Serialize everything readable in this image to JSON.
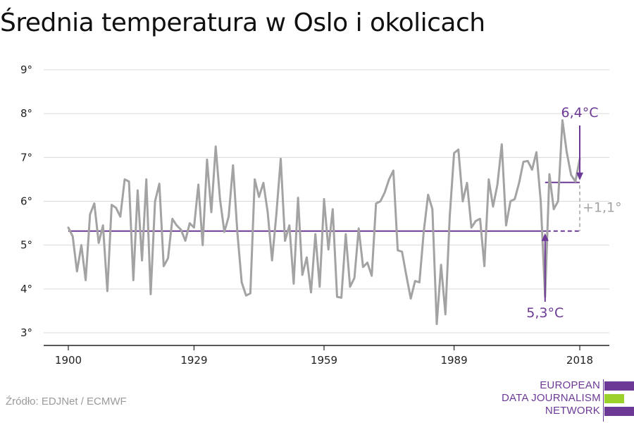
{
  "title": "Średnia temperatura w Oslo i okolicach",
  "source": "Źródło: EDJNet / ECMWF",
  "brand": {
    "line1": "EUROPEAN",
    "line2": "DATA JOURNALISM",
    "line3": "NETWORK",
    "colors": [
      "#6c3a96",
      "#9bd12b",
      "#6c3a96"
    ]
  },
  "colors": {
    "series": "#a3a3a3",
    "accent": "#6c3a96",
    "grid": "#d9d9d9",
    "axis": "#222222",
    "annotation_gray": "#a3a3a3"
  },
  "chart_data": {
    "type": "line",
    "title": "Średnia temperatura w Oslo i okolicach",
    "xlabel": "",
    "ylabel": "",
    "xlim": [
      1900,
      2018
    ],
    "ylim": [
      3,
      9
    ],
    "x_ticks": [
      1900,
      1929,
      1959,
      1989,
      2018
    ],
    "x_tick_labels": [
      "1900",
      "1929",
      "1959",
      "1989",
      "2018"
    ],
    "y_ticks": [
      3,
      4,
      5,
      6,
      7,
      8,
      9
    ],
    "y_tick_labels": [
      "3°",
      "4°",
      "5°",
      "6°",
      "7°",
      "8°",
      "9°"
    ],
    "grid": "horizontal",
    "x": [
      1900,
      1901,
      1902,
      1903,
      1904,
      1905,
      1906,
      1907,
      1908,
      1909,
      1910,
      1911,
      1912,
      1913,
      1914,
      1915,
      1916,
      1917,
      1918,
      1919,
      1920,
      1921,
      1922,
      1923,
      1924,
      1925,
      1926,
      1927,
      1928,
      1929,
      1930,
      1931,
      1932,
      1933,
      1934,
      1935,
      1936,
      1937,
      1938,
      1939,
      1940,
      1941,
      1942,
      1943,
      1944,
      1945,
      1946,
      1947,
      1948,
      1949,
      1950,
      1951,
      1952,
      1953,
      1954,
      1955,
      1956,
      1957,
      1958,
      1959,
      1960,
      1961,
      1962,
      1963,
      1964,
      1965,
      1966,
      1967,
      1968,
      1969,
      1970,
      1971,
      1972,
      1973,
      1974,
      1975,
      1976,
      1977,
      1978,
      1979,
      1980,
      1981,
      1982,
      1983,
      1984,
      1985,
      1986,
      1987,
      1988,
      1989,
      1990,
      1991,
      1992,
      1993,
      1994,
      1995,
      1996,
      1997,
      1998,
      1999,
      2000,
      2001,
      2002,
      2003,
      2004,
      2005,
      2006,
      2007,
      2008,
      2009,
      2010,
      2011,
      2012,
      2013,
      2014,
      2015,
      2016,
      2017,
      2018
    ],
    "values": [
      5.4,
      5.2,
      4.4,
      5.0,
      4.2,
      5.7,
      5.95,
      5.05,
      5.45,
      3.95,
      5.92,
      5.85,
      5.65,
      6.5,
      6.45,
      4.2,
      6.25,
      4.65,
      6.5,
      3.88,
      6.0,
      6.4,
      4.52,
      4.7,
      5.6,
      5.45,
      5.35,
      5.1,
      5.5,
      5.4,
      6.38,
      5.0,
      6.95,
      5.75,
      7.25,
      6.05,
      5.3,
      5.65,
      6.82,
      5.3,
      4.15,
      3.85,
      3.9,
      6.5,
      6.1,
      6.42,
      5.75,
      4.65,
      5.7,
      6.97,
      5.1,
      5.45,
      4.12,
      6.08,
      4.32,
      4.72,
      3.92,
      5.25,
      4.05,
      6.05,
      4.9,
      5.82,
      3.82,
      3.8,
      5.25,
      4.05,
      4.25,
      5.38,
      4.5,
      4.6,
      4.3,
      5.95,
      6.0,
      6.2,
      6.5,
      6.7,
      4.88,
      4.85,
      4.3,
      3.78,
      4.18,
      4.15,
      5.3,
      6.15,
      5.82,
      3.2,
      4.55,
      3.42,
      5.65,
      7.1,
      7.18,
      6.0,
      6.42,
      5.4,
      5.55,
      5.6,
      4.52,
      6.5,
      5.88,
      6.38,
      7.3,
      5.45,
      6.0,
      6.05,
      6.42,
      6.9,
      6.92,
      6.72,
      7.12,
      6.0,
      3.82,
      6.62,
      5.82,
      6.0,
      7.85,
      7.12,
      6.6,
      6.45,
      6.97
    ],
    "series": [
      {
        "name": "",
        "color": "#a3a3a3"
      }
    ],
    "reference_lines": [
      {
        "label": "5,3°C",
        "value": 5.32,
        "x_start": 1900,
        "x_end": 2018,
        "solid_until": 2010,
        "color": "#6c3a96"
      },
      {
        "label": "6,4°C",
        "value": 6.43,
        "x_start": 2010,
        "x_end": 2018,
        "color": "#6c3a96"
      }
    ],
    "annotations": {
      "baseline_label": "5,3°C",
      "recent_label": "6,4°C",
      "difference_label": "+1,1°"
    }
  }
}
